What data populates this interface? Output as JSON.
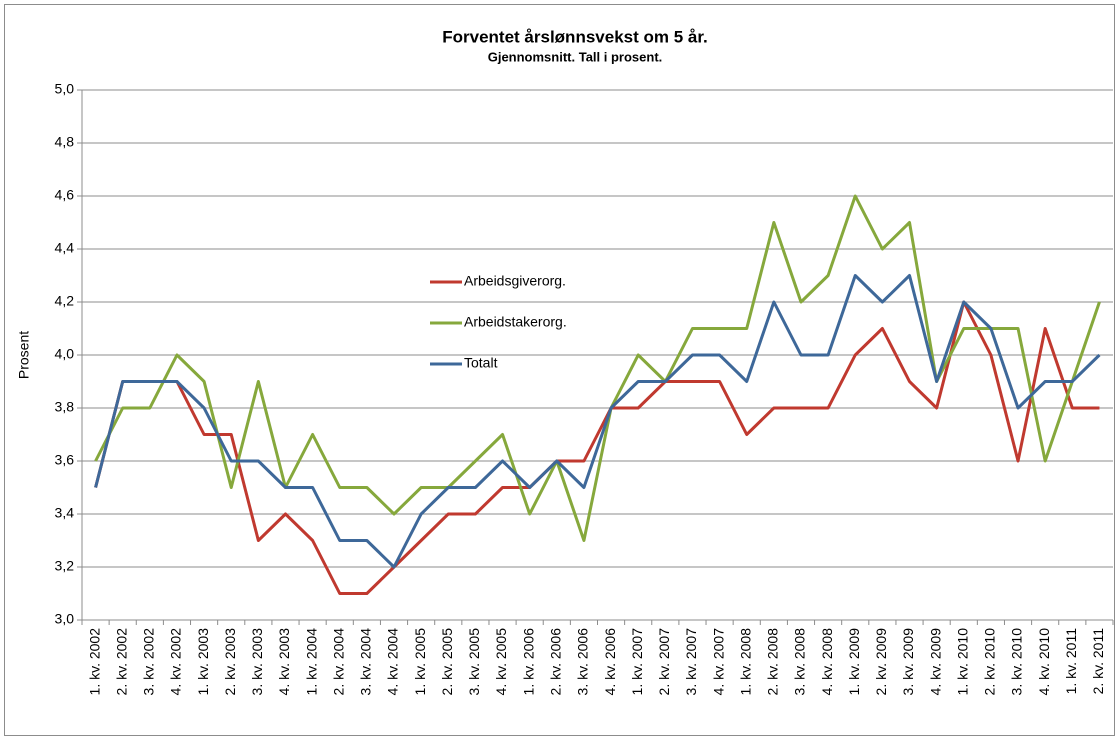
{
  "chart_data": {
    "type": "line",
    "title": "Forventet årslønnsvekst om 5 år.",
    "subtitle": "Gjennomsnitt.  Tall i prosent.",
    "y_label": "Prosent",
    "categories": [
      "1. kv. 2002",
      "2. kv. 2002",
      "3. kv. 2002",
      "4. kv. 2002",
      "1. kv. 2003",
      "2. kv. 2003",
      "3. kv. 2003",
      "4. kv. 2003",
      "1. kv. 2004",
      "2. kv. 2004",
      "3. kv. 2004",
      "4. kv. 2004",
      "1. kv. 2005",
      "2. kv. 2005",
      "3. kv. 2005",
      "4. kv. 2005",
      "1. kv. 2006",
      "2. kv. 2006",
      "3. kv. 2006",
      "4. kv. 2006",
      "1. kv. 2007",
      "2. kv. 2007",
      "3. kv. 2007",
      "4. kv. 2007",
      "1. kv. 2008",
      "2. kv. 2008",
      "3. kv. 2008",
      "4. kv. 2008",
      "1. kv. 2009",
      "2. kv. 2009",
      "3. kv. 2009",
      "4. kv. 2009",
      "1. kv. 2010",
      "2. kv. 2010",
      "3. kv. 2010",
      "4. kv. 2010",
      "1. kv. 2011",
      "2. kv. 2011"
    ],
    "series": [
      {
        "name": "Arbeidsgiverorg.",
        "color": "#c0392f",
        "values": [
          3.5,
          3.9,
          3.9,
          3.9,
          3.7,
          3.7,
          3.3,
          3.4,
          3.3,
          3.1,
          3.1,
          3.2,
          3.3,
          3.4,
          3.4,
          3.5,
          3.5,
          3.6,
          3.6,
          3.8,
          3.8,
          3.9,
          3.9,
          3.9,
          3.7,
          3.8,
          3.8,
          3.8,
          4.0,
          4.1,
          3.9,
          3.8,
          4.2,
          4.0,
          3.6,
          4.1,
          3.8,
          3.8
        ]
      },
      {
        "name": "Arbeidstakerorg.",
        "color": "#86a83c",
        "values": [
          3.6,
          3.8,
          3.8,
          4.0,
          3.9,
          3.5,
          3.9,
          3.5,
          3.7,
          3.5,
          3.5,
          3.4,
          3.5,
          3.5,
          3.6,
          3.7,
          3.4,
          3.6,
          3.3,
          3.8,
          4.0,
          3.9,
          4.1,
          4.1,
          4.1,
          4.5,
          4.2,
          4.3,
          4.6,
          4.4,
          4.5,
          3.9,
          4.1,
          4.1,
          4.1,
          3.6,
          3.9,
          4.2
        ]
      },
      {
        "name": "Totalt",
        "color": "#3e6899",
        "values": [
          3.5,
          3.9,
          3.9,
          3.9,
          3.8,
          3.6,
          3.6,
          3.5,
          3.5,
          3.3,
          3.3,
          3.2,
          3.4,
          3.5,
          3.5,
          3.6,
          3.5,
          3.6,
          3.5,
          3.8,
          3.9,
          3.9,
          4.0,
          4.0,
          3.9,
          4.2,
          4.0,
          4.0,
          4.3,
          4.2,
          4.3,
          3.9,
          4.2,
          4.1,
          3.8,
          3.9,
          3.9,
          4.0
        ]
      }
    ],
    "ylim": [
      3.0,
      5.0
    ],
    "yticks": [
      {
        "value": 3.0,
        "label": "3,0"
      },
      {
        "value": 3.2,
        "label": "3,2"
      },
      {
        "value": 3.4,
        "label": "3,4"
      },
      {
        "value": 3.6,
        "label": "3,6"
      },
      {
        "value": 3.8,
        "label": "3,8"
      },
      {
        "value": 4.0,
        "label": "4,0"
      },
      {
        "value": 4.2,
        "label": "4,2"
      },
      {
        "value": 4.4,
        "label": "4,4"
      },
      {
        "value": 4.6,
        "label": "4,6"
      },
      {
        "value": 4.8,
        "label": "4,8"
      },
      {
        "value": 5.0,
        "label": "5,0"
      }
    ],
    "grid": true
  }
}
